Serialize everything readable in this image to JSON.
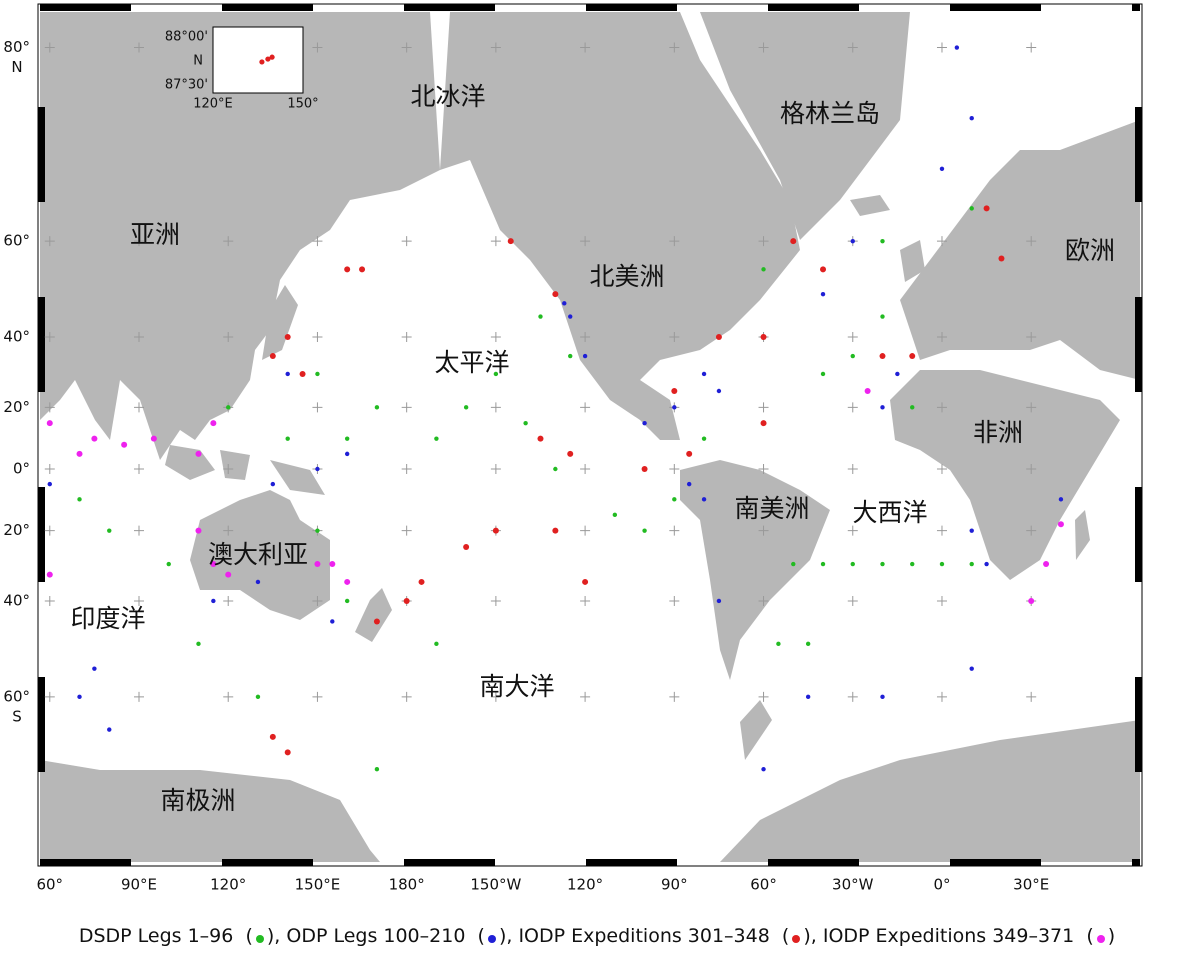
{
  "map": {
    "type": "site-map",
    "labels": [
      "北冰洋",
      "格林兰岛",
      "亚洲",
      "欧洲",
      "北美洲",
      "太平洋",
      "非洲",
      "南美洲",
      "大西洋",
      "澳大利亚",
      "印度洋",
      "南大洋",
      "南极洲"
    ],
    "xticks": [
      {
        "value": 90,
        "label": "90°E"
      },
      {
        "value": 120,
        "label": "120°"
      },
      {
        "value": 150,
        "label": "150°E"
      },
      {
        "value": 180,
        "label": "180°"
      },
      {
        "value": -150,
        "label": "150°W"
      },
      {
        "value": -120,
        "label": "120°"
      },
      {
        "value": -90,
        "label": "90°"
      },
      {
        "value": -60,
        "label": "60°"
      },
      {
        "value": -30,
        "label": "30°W"
      },
      {
        "value": 0,
        "label": "0°"
      },
      {
        "value": 30,
        "label": "30°E"
      },
      {
        "value": 60,
        "label": "60°"
      }
    ],
    "yticks": [
      {
        "value": 80,
        "label": "80°",
        "sub": "N"
      },
      {
        "value": 60,
        "label": "60°"
      },
      {
        "value": 40,
        "label": "40°"
      },
      {
        "value": 20,
        "label": "20°"
      },
      {
        "value": 0,
        "label": "0°"
      },
      {
        "value": -20,
        "label": "20°"
      },
      {
        "value": -40,
        "label": "40°"
      },
      {
        "value": -60,
        "label": "60°",
        "sub": "S"
      }
    ],
    "inset": {
      "yticks": [
        {
          "value": 88,
          "label": "88°00'"
        },
        {
          "value": 87.5,
          "label": "87°30'"
        }
      ],
      "ylabel": "N",
      "xticks": [
        {
          "value": 120,
          "label": "120°E"
        },
        {
          "value": 150,
          "label": "150°"
        }
      ],
      "sites": [
        [
          136.3,
          87.74
        ],
        [
          138.3,
          87.77
        ],
        [
          139.7,
          87.79
        ]
      ],
      "color": "#e02020"
    },
    "legend_marks": {
      "open": "(",
      "close": "),",
      "end": ")"
    },
    "series": [
      {
        "name": "DSDP Legs 1–96",
        "color": "#22bb22",
        "sites": [
          [
            -150,
            30
          ],
          [
            -160,
            20
          ],
          [
            -170,
            10
          ],
          [
            -140,
            15
          ],
          [
            -130,
            0
          ],
          [
            -110,
            -15
          ],
          [
            -100,
            -20
          ],
          [
            -90,
            -10
          ],
          [
            160,
            10
          ],
          [
            170,
            20
          ],
          [
            150,
            30
          ],
          [
            -40,
            30
          ],
          [
            -30,
            35
          ],
          [
            -20,
            45
          ],
          [
            -10,
            20
          ],
          [
            -50,
            -30
          ],
          [
            -40,
            -30
          ],
          [
            -30,
            -30
          ],
          [
            -20,
            -30
          ],
          [
            -10,
            -30
          ],
          [
            0,
            -30
          ],
          [
            10,
            -30
          ],
          [
            -45,
            -50
          ],
          [
            -55,
            -50
          ],
          [
            70,
            -10
          ],
          [
            80,
            -20
          ],
          [
            100,
            -30
          ],
          [
            110,
            -50
          ],
          [
            130,
            -60
          ],
          [
            170,
            -70
          ],
          [
            -170,
            -50
          ],
          [
            150,
            -20
          ],
          [
            160,
            -40
          ],
          [
            -60,
            55
          ],
          [
            -20,
            60
          ],
          [
            10,
            65
          ],
          [
            -90,
            25
          ],
          [
            -80,
            10
          ],
          [
            120,
            20
          ],
          [
            140,
            10
          ],
          [
            -125,
            35
          ],
          [
            -135,
            45
          ]
        ]
      },
      {
        "name": "ODP Legs 100–210",
        "color": "#1f1fd6",
        "sites": [
          [
            -125,
            45
          ],
          [
            -127,
            48
          ],
          [
            -120,
            35
          ],
          [
            -100,
            15
          ],
          [
            -85,
            -5
          ],
          [
            -80,
            -10
          ],
          [
            -75,
            -40
          ],
          [
            -60,
            -70
          ],
          [
            -45,
            -60
          ],
          [
            -20,
            -60
          ],
          [
            10,
            -55
          ],
          [
            15,
            -30
          ],
          [
            10,
            -20
          ],
          [
            40,
            -10
          ],
          [
            60,
            -5
          ],
          [
            -40,
            50
          ],
          [
            -30,
            60
          ],
          [
            10,
            75
          ],
          [
            5,
            80
          ],
          [
            0,
            70
          ],
          [
            -80,
            30
          ],
          [
            -75,
            25
          ],
          [
            -90,
            20
          ],
          [
            140,
            30
          ],
          [
            150,
            0
          ],
          [
            160,
            5
          ],
          [
            130,
            -35
          ],
          [
            115,
            -40
          ],
          [
            70,
            -60
          ],
          [
            80,
            -65
          ],
          [
            75,
            -55
          ],
          [
            155,
            -45
          ],
          [
            170,
            -45
          ],
          [
            135,
            -5
          ],
          [
            -20,
            20
          ],
          [
            -15,
            30
          ]
        ]
      },
      {
        "name": "IODP Expeditions 301–348",
        "color": "#e02020",
        "sites": [
          [
            140,
            40
          ],
          [
            135,
            35
          ],
          [
            145,
            30
          ],
          [
            160,
            55
          ],
          [
            165,
            55
          ],
          [
            -145,
            60
          ],
          [
            -130,
            50
          ],
          [
            -120,
            -35
          ],
          [
            -125,
            5
          ],
          [
            -135,
            10
          ],
          [
            -130,
            -20
          ],
          [
            -150,
            -20
          ],
          [
            -160,
            -25
          ],
          [
            -175,
            -35
          ],
          [
            -180,
            -40
          ],
          [
            170,
            -45
          ],
          [
            135,
            -66
          ],
          [
            140,
            -68
          ],
          [
            -90,
            25
          ],
          [
            -75,
            40
          ],
          [
            -60,
            40
          ],
          [
            -50,
            60
          ],
          [
            -40,
            55
          ],
          [
            -20,
            35
          ],
          [
            -10,
            35
          ],
          [
            15,
            65
          ],
          [
            20,
            57
          ],
          [
            -60,
            15
          ],
          [
            -85,
            5
          ],
          [
            -100,
            0
          ]
        ]
      },
      {
        "name": "IODP Expeditions 349–371",
        "color": "#ee22ee",
        "sites": [
          [
            60,
            15
          ],
          [
            75,
            10
          ],
          [
            70,
            5
          ],
          [
            85,
            8
          ],
          [
            95,
            10
          ],
          [
            110,
            5
          ],
          [
            115,
            15
          ],
          [
            110,
            -20
          ],
          [
            115,
            -30
          ],
          [
            120,
            -33
          ],
          [
            155,
            -30
          ],
          [
            160,
            -35
          ],
          [
            150,
            -30
          ],
          [
            -25,
            25
          ],
          [
            35,
            -30
          ],
          [
            30,
            -40
          ],
          [
            60,
            -33
          ],
          [
            40,
            -18
          ]
        ]
      }
    ]
  }
}
